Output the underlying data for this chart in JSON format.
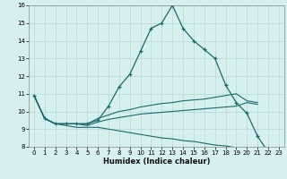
{
  "xlabel": "Humidex (Indice chaleur)",
  "background_color": "#d6efef",
  "grid_color": "#b8d8d8",
  "line_color": "#1a6b6b",
  "xlim": [
    -0.5,
    23.5
  ],
  "ylim": [
    8,
    16
  ],
  "xticks": [
    0,
    1,
    2,
    3,
    4,
    5,
    6,
    7,
    8,
    9,
    10,
    11,
    12,
    13,
    14,
    15,
    16,
    17,
    18,
    19,
    20,
    21,
    22,
    23
  ],
  "yticks": [
    8,
    9,
    10,
    11,
    12,
    13,
    14,
    15,
    16
  ],
  "line1_x": [
    0,
    1,
    2,
    3,
    4,
    5,
    6,
    7,
    8,
    9,
    10,
    11,
    12,
    13,
    14,
    15,
    16,
    17,
    18,
    19,
    20,
    21,
    22
  ],
  "line1_y": [
    10.9,
    9.6,
    9.3,
    9.3,
    9.3,
    9.3,
    9.5,
    10.3,
    11.4,
    12.1,
    13.4,
    14.7,
    15.0,
    16.0,
    14.7,
    14.0,
    13.5,
    13.0,
    11.5,
    10.5,
    9.9,
    8.6,
    7.7
  ],
  "line2_x": [
    0,
    1,
    2,
    3,
    4,
    5,
    6,
    7,
    8,
    9,
    10,
    11,
    12,
    13,
    14,
    15,
    16,
    17,
    18,
    19,
    20,
    21
  ],
  "line2_y": [
    10.9,
    9.6,
    9.3,
    9.3,
    9.3,
    9.3,
    9.6,
    9.8,
    10.0,
    10.1,
    10.25,
    10.35,
    10.45,
    10.5,
    10.6,
    10.65,
    10.7,
    10.8,
    10.9,
    11.0,
    10.6,
    10.5
  ],
  "line3_x": [
    0,
    1,
    2,
    3,
    4,
    5,
    6,
    7,
    8,
    9,
    10,
    11,
    12,
    13,
    14,
    15,
    16,
    17,
    18,
    19,
    20,
    21
  ],
  "line3_y": [
    10.9,
    9.6,
    9.3,
    9.3,
    9.3,
    9.2,
    9.4,
    9.55,
    9.65,
    9.75,
    9.85,
    9.9,
    9.95,
    10.0,
    10.05,
    10.1,
    10.15,
    10.2,
    10.25,
    10.3,
    10.5,
    10.4
  ],
  "line4_x": [
    0,
    1,
    2,
    3,
    4,
    5,
    6,
    7,
    8,
    9,
    10,
    11,
    12,
    13,
    14,
    15,
    16,
    17,
    18,
    19,
    20,
    21,
    22
  ],
  "line4_y": [
    10.9,
    9.6,
    9.3,
    9.2,
    9.1,
    9.1,
    9.1,
    9.0,
    8.9,
    8.8,
    8.7,
    8.6,
    8.5,
    8.45,
    8.35,
    8.3,
    8.2,
    8.1,
    8.05,
    7.95,
    7.85,
    7.75,
    7.65
  ]
}
